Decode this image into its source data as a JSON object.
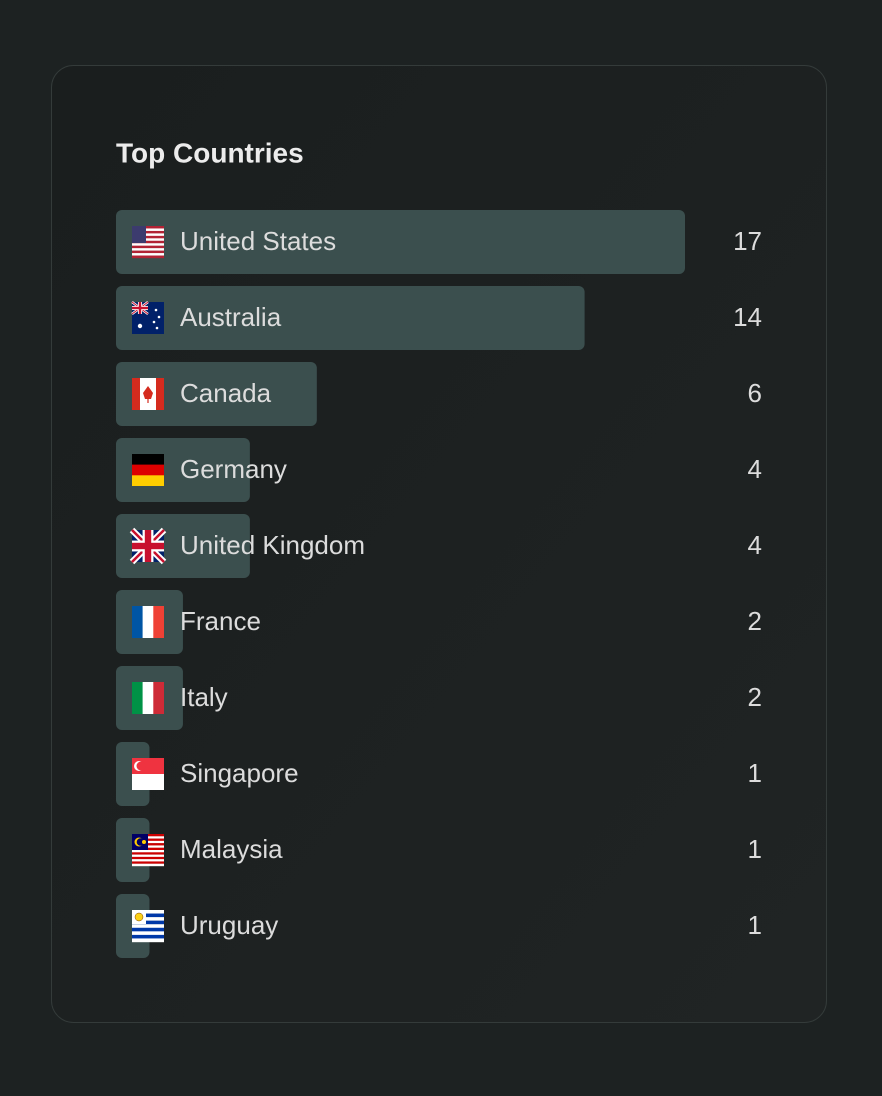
{
  "chart_data": {
    "type": "bar",
    "orientation": "horizontal",
    "title": "Top Countries",
    "categories": [
      "United States",
      "Australia",
      "Canada",
      "Germany",
      "United Kingdom",
      "France",
      "Italy",
      "Singapore",
      "Malaysia",
      "Uruguay"
    ],
    "values": [
      17,
      14,
      6,
      4,
      4,
      2,
      2,
      1,
      1,
      1
    ],
    "color": "#3b4f4e"
  }
}
